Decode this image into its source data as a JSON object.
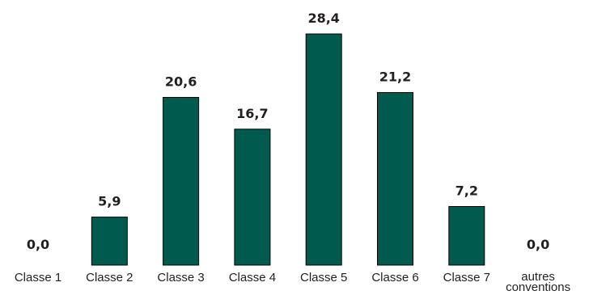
{
  "chart_data": {
    "type": "bar",
    "categories": [
      "Classe 1",
      "Classe 2",
      "Classe 3",
      "Classe 4",
      "Classe 5",
      "Classe 6",
      "Classe 7",
      "autres conventions"
    ],
    "category_lines": [
      [
        "Classe 1"
      ],
      [
        "Classe 2"
      ],
      [
        "Classe 3"
      ],
      [
        "Classe 4"
      ],
      [
        "Classe 5"
      ],
      [
        "Classe 6"
      ],
      [
        "Classe 7"
      ],
      [
        "autres",
        "conventions"
      ]
    ],
    "values": [
      0.0,
      5.9,
      20.6,
      16.7,
      28.4,
      21.2,
      7.2,
      0.0
    ],
    "value_labels": [
      "0,0",
      "5,9",
      "20,6",
      "16,7",
      "28,4",
      "21,2",
      "7,2",
      "0,0"
    ],
    "title": "",
    "xlabel": "",
    "ylabel": "",
    "ylim": [
      0,
      28.4
    ],
    "grid": false,
    "legend": "none",
    "bar_color": "#005a4e"
  }
}
